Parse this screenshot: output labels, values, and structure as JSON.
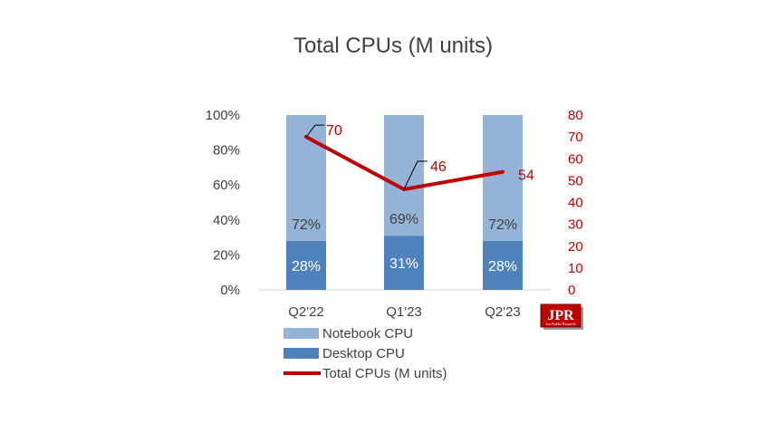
{
  "chart_data": {
    "type": "bar",
    "stacked": true,
    "normalized": true,
    "title": "Total CPUs (M units)",
    "categories": [
      "Q2'22",
      "Q1'23",
      "Q2'23"
    ],
    "series": [
      {
        "name": "Desktop CPU",
        "kind": "bar",
        "axis": "left",
        "color": "#4f81bd",
        "values": [
          28,
          31,
          28
        ],
        "labels": [
          "28%",
          "31%",
          "28%"
        ]
      },
      {
        "name": "Notebook CPU",
        "kind": "bar",
        "axis": "left",
        "color": "#95b3d7",
        "values": [
          72,
          69,
          72
        ],
        "labels": [
          "72%",
          "69%",
          "72%"
        ]
      },
      {
        "name": "Total CPUs (M units)",
        "kind": "line",
        "axis": "right",
        "color": "#c00000",
        "values": [
          70,
          46,
          54
        ],
        "labels": [
          "70",
          "46",
          "54"
        ]
      }
    ],
    "y_left": {
      "range": [
        0,
        100
      ],
      "ticks": [
        "0%",
        "20%",
        "40%",
        "60%",
        "80%",
        "100%"
      ]
    },
    "y_right": {
      "range": [
        0,
        80
      ],
      "ticks": [
        "0",
        "10",
        "20",
        "30",
        "40",
        "50",
        "60",
        "70",
        "80"
      ]
    },
    "grid": false,
    "legend_position": "bottom"
  },
  "logo": {
    "text": "JPR",
    "subtext": "Jon Peddie Research"
  }
}
